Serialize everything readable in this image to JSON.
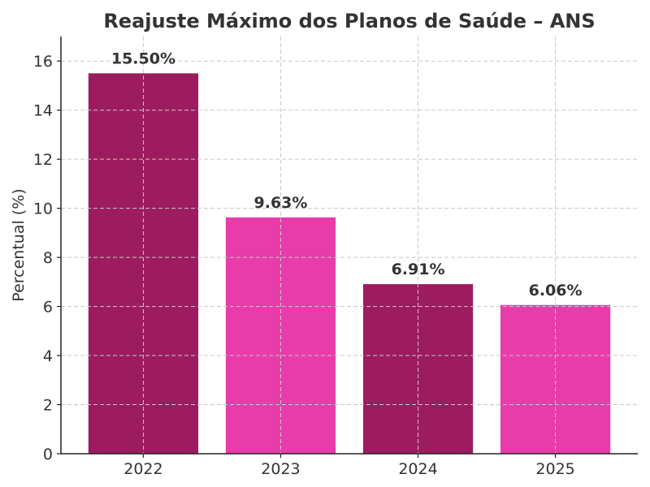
{
  "chart_data": {
    "type": "bar",
    "title": "Reajuste Máximo dos Planos de Saúde – ANS",
    "xlabel": "",
    "ylabel": "Percentual (%)",
    "categories": [
      "2022",
      "2023",
      "2024",
      "2025"
    ],
    "values": [
      15.5,
      9.63,
      6.91,
      6.06
    ],
    "data_labels": [
      "15.50%",
      "9.63%",
      "6.91%",
      "6.06%"
    ],
    "colors": [
      "#9c1c5f",
      "#e83caa",
      "#9c1c5f",
      "#e83caa"
    ],
    "ylim": [
      0,
      17
    ],
    "yticks": [
      0,
      2,
      4,
      6,
      8,
      10,
      12,
      14,
      16
    ],
    "grid": true
  }
}
